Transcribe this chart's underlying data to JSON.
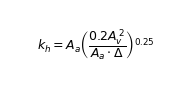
{
  "equation": "$k_{h} = A_{a}\\left(\\dfrac{0.2A_{v}^{\\,2}}{A_{a}\\cdot\\Delta}\\right)^{0.25}$",
  "background_color": "#ffffff",
  "text_color": "#000000",
  "fontsize": 9,
  "fig_width": 1.91,
  "fig_height": 0.91,
  "dpi": 100
}
